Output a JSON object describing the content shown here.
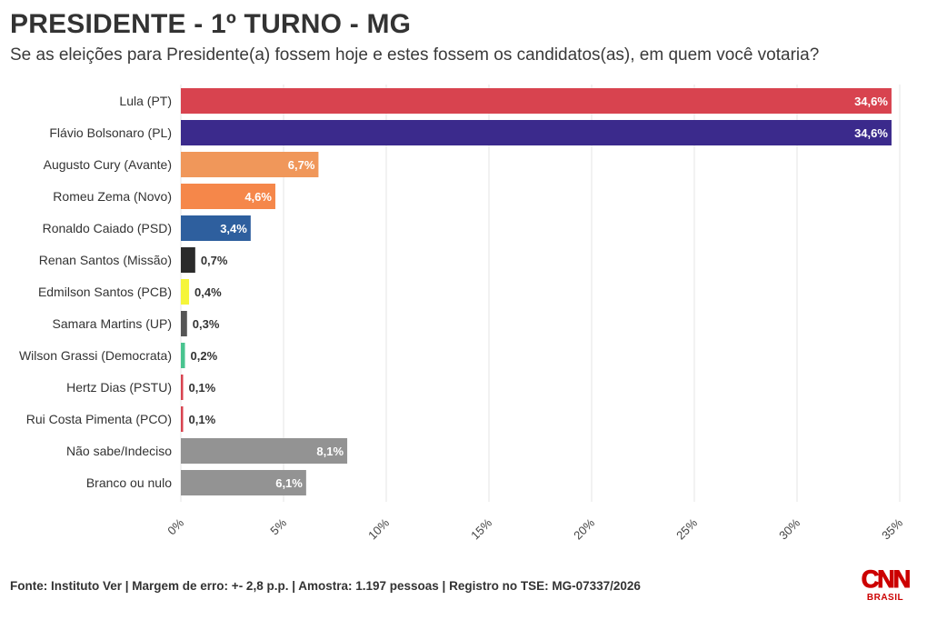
{
  "header": {
    "title": "PRESIDENTE - 1º TURNO - MG",
    "subtitle": "Se as eleições para Presidente(a) fossem hoje e estes fossem os candidatos(as), em quem você votaria?"
  },
  "footer": {
    "source": "Fonte: Instituto Ver | Margem de erro: +- 2,8 p.p. | Amostra: 1.197 pessoas | Registro no TSE: MG-07337/2026"
  },
  "logo": {
    "brand": "CNN",
    "sub": "BRASIL",
    "color": "#cc0000"
  },
  "chart_data": {
    "type": "bar",
    "orientation": "horizontal",
    "categories": [
      "Lula (PT)",
      "Flávio Bolsonaro (PL)",
      "Augusto Cury (Avante)",
      "Romeu Zema (Novo)",
      "Ronaldo Caiado (PSD)",
      "Renan Santos (Missão)",
      "Edmilson Santos (PCB)",
      "Samara Martins (UP)",
      "Wilson Grassi (Democrata)",
      "Hertz Dias (PSTU)",
      "Rui Costa Pimenta (PCO)",
      "Não sabe/Indeciso",
      "Branco ou nulo"
    ],
    "values": [
      34.6,
      34.6,
      6.7,
      4.6,
      3.4,
      0.7,
      0.4,
      0.3,
      0.2,
      0.1,
      0.1,
      8.1,
      6.1
    ],
    "value_labels": [
      "34,6%",
      "34,6%",
      "6,7%",
      "4,6%",
      "3,4%",
      "0,7%",
      "0,4%",
      "0,3%",
      "0,2%",
      "0,1%",
      "0,1%",
      "8,1%",
      "6,1%"
    ],
    "colors": [
      "#d8434f",
      "#3b2a8c",
      "#f0975a",
      "#f5874a",
      "#2e5f9e",
      "#2b2b2b",
      "#f5f53a",
      "#555555",
      "#49c48f",
      "#d8434f",
      "#d8434f",
      "#939393",
      "#939393"
    ],
    "label_inside": [
      true,
      true,
      true,
      true,
      true,
      false,
      false,
      false,
      false,
      false,
      false,
      true,
      true
    ],
    "xlim": [
      0,
      35
    ],
    "xticks": [
      0,
      5,
      10,
      15,
      20,
      25,
      30,
      35
    ],
    "xtick_labels": [
      "0%",
      "5%",
      "10%",
      "15%",
      "20%",
      "25%",
      "30%",
      "35%"
    ],
    "grid": true,
    "xlabel": "",
    "ylabel": ""
  }
}
